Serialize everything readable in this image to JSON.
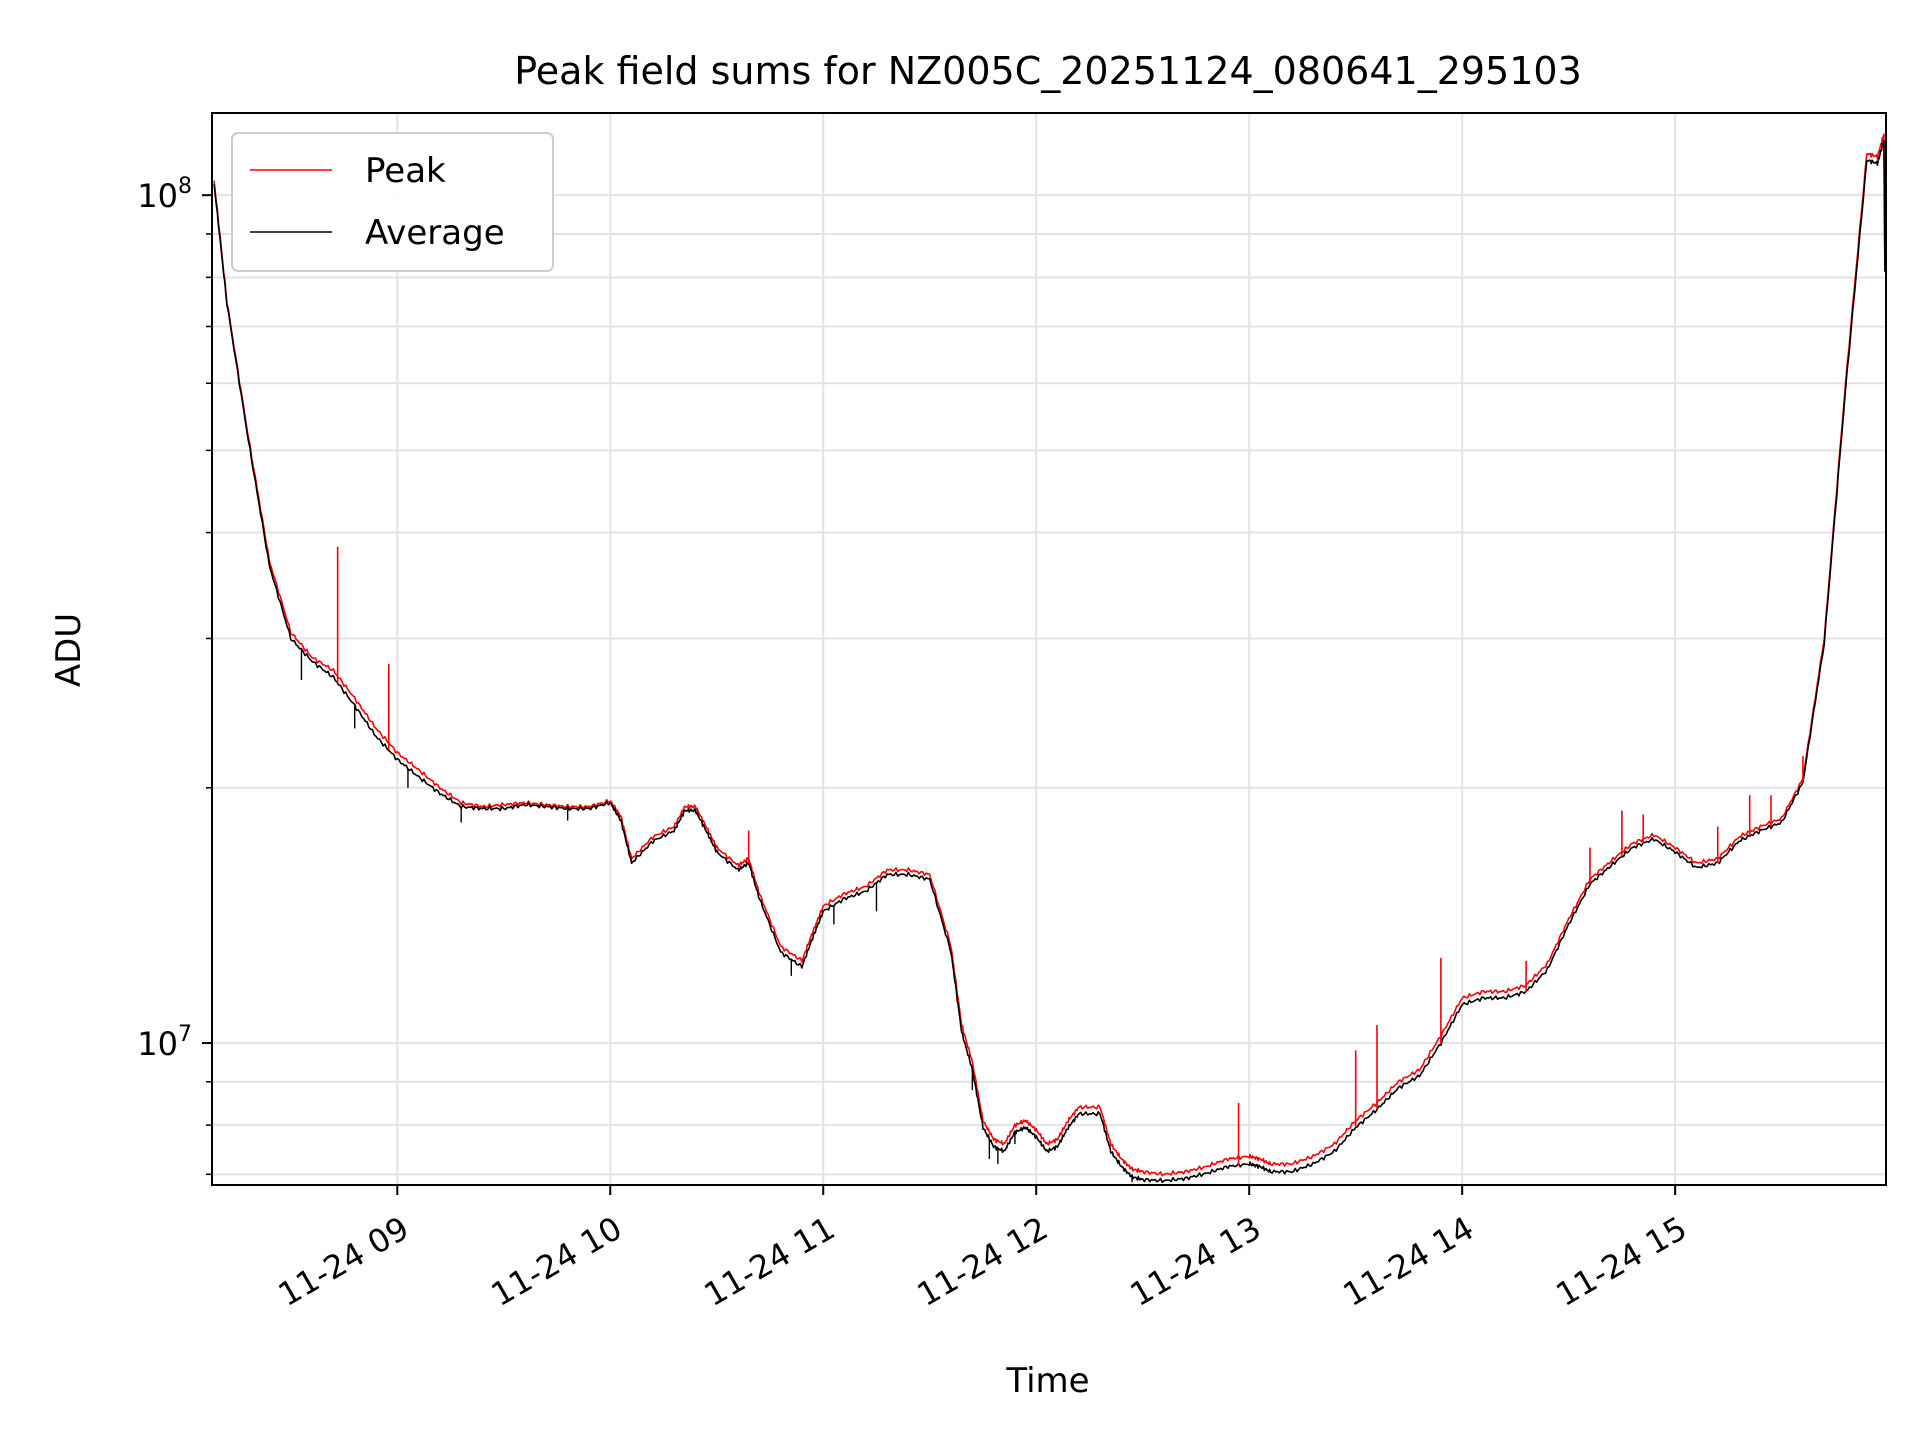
{
  "chart_data": {
    "type": "line",
    "title": "Peak field sums for NZ005C_20251124_080641_295103",
    "xlabel": "Time",
    "ylabel": "ADU",
    "yscale": "log",
    "x_unit": "hours since 11-24 00:00",
    "xlim": [
      8.13,
      15.99
    ],
    "ylim": [
      6800000,
      125000000
    ],
    "grid": true,
    "legend_position": "top-left",
    "x_ticks": [
      {
        "value": 9,
        "label": "11-24 09"
      },
      {
        "value": 10,
        "label": "11-24 10"
      },
      {
        "value": 11,
        "label": "11-24 11"
      },
      {
        "value": 12,
        "label": "11-24 12"
      },
      {
        "value": 13,
        "label": "11-24 13"
      },
      {
        "value": 14,
        "label": "11-24 14"
      },
      {
        "value": 15,
        "label": "11-24 15"
      }
    ],
    "y_ticks": [
      {
        "value": 10000000,
        "base": "10",
        "exp": "7"
      },
      {
        "value": 100000000,
        "base": "10",
        "exp": "8"
      }
    ],
    "series": [
      {
        "name": "Peak",
        "color": "#ff0000",
        "points": [
          [
            8.14,
            104000000
          ],
          [
            8.2,
            75000000
          ],
          [
            8.3,
            52000000
          ],
          [
            8.4,
            37000000
          ],
          [
            8.5,
            30500000
          ],
          [
            8.6,
            28500000
          ],
          [
            8.7,
            27500000
          ],
          [
            8.8,
            25500000
          ],
          [
            8.9,
            23500000
          ],
          [
            9.0,
            22000000
          ],
          [
            9.1,
            21000000
          ],
          [
            9.2,
            20000000
          ],
          [
            9.3,
            19200000
          ],
          [
            9.4,
            19000000
          ],
          [
            9.5,
            19100000
          ],
          [
            9.6,
            19200000
          ],
          [
            9.7,
            19100000
          ],
          [
            9.8,
            19000000
          ],
          [
            9.9,
            19000000
          ],
          [
            10.0,
            19300000
          ],
          [
            10.05,
            18500000
          ],
          [
            10.1,
            16500000
          ],
          [
            10.2,
            17500000
          ],
          [
            10.3,
            18000000
          ],
          [
            10.35,
            19000000
          ],
          [
            10.4,
            19000000
          ],
          [
            10.45,
            18000000
          ],
          [
            10.5,
            17000000
          ],
          [
            10.6,
            16200000
          ],
          [
            10.65,
            16500000
          ],
          [
            10.7,
            15000000
          ],
          [
            10.8,
            13000000
          ],
          [
            10.9,
            12500000
          ],
          [
            10.95,
            13500000
          ],
          [
            11.0,
            14500000
          ],
          [
            11.1,
            15000000
          ],
          [
            11.2,
            15300000
          ],
          [
            11.3,
            16000000
          ],
          [
            11.4,
            16000000
          ],
          [
            11.5,
            15800000
          ],
          [
            11.6,
            13000000
          ],
          [
            11.65,
            10500000
          ],
          [
            11.7,
            9500000
          ],
          [
            11.75,
            8100000
          ],
          [
            11.8,
            7700000
          ],
          [
            11.85,
            7600000
          ],
          [
            11.9,
            8000000
          ],
          [
            11.95,
            8100000
          ],
          [
            12.0,
            7900000
          ],
          [
            12.05,
            7600000
          ],
          [
            12.1,
            7700000
          ],
          [
            12.15,
            8100000
          ],
          [
            12.2,
            8400000
          ],
          [
            12.3,
            8400000
          ],
          [
            12.35,
            7600000
          ],
          [
            12.4,
            7300000
          ],
          [
            12.45,
            7100000
          ],
          [
            12.5,
            7050000
          ],
          [
            12.6,
            7000000
          ],
          [
            12.7,
            7050000
          ],
          [
            12.8,
            7150000
          ],
          [
            12.9,
            7300000
          ],
          [
            13.0,
            7350000
          ],
          [
            13.05,
            7300000
          ],
          [
            13.1,
            7200000
          ],
          [
            13.2,
            7200000
          ],
          [
            13.3,
            7350000
          ],
          [
            13.4,
            7600000
          ],
          [
            13.5,
            8100000
          ],
          [
            13.6,
            8500000
          ],
          [
            13.7,
            9000000
          ],
          [
            13.8,
            9300000
          ],
          [
            13.9,
            10200000
          ],
          [
            14.0,
            11300000
          ],
          [
            14.1,
            11500000
          ],
          [
            14.2,
            11500000
          ],
          [
            14.3,
            11700000
          ],
          [
            14.4,
            12400000
          ],
          [
            14.5,
            14000000
          ],
          [
            14.6,
            15600000
          ],
          [
            14.7,
            16400000
          ],
          [
            14.8,
            17200000
          ],
          [
            14.9,
            17600000
          ],
          [
            15.0,
            17000000
          ],
          [
            15.1,
            16300000
          ],
          [
            15.2,
            16500000
          ],
          [
            15.3,
            17500000
          ],
          [
            15.4,
            18000000
          ],
          [
            15.5,
            18400000
          ],
          [
            15.6,
            20500000
          ],
          [
            15.7,
            30000000
          ],
          [
            15.8,
            60000000
          ],
          [
            15.9,
            112000000
          ],
          [
            15.95,
            111000000
          ],
          [
            15.98,
            118000000
          ]
        ]
      },
      {
        "name": "Average",
        "color": "#000000",
        "points": [
          [
            8.14,
            103000000
          ],
          [
            8.2,
            74500000
          ],
          [
            8.3,
            51500000
          ],
          [
            8.4,
            36500000
          ],
          [
            8.5,
            30000000
          ],
          [
            8.6,
            28200000
          ],
          [
            8.7,
            27000000
          ],
          [
            8.8,
            25000000
          ],
          [
            8.9,
            23000000
          ],
          [
            9.0,
            21600000
          ],
          [
            9.1,
            20600000
          ],
          [
            9.2,
            19700000
          ],
          [
            9.3,
            19000000
          ],
          [
            9.4,
            18900000
          ],
          [
            9.5,
            18900000
          ],
          [
            9.6,
            19100000
          ],
          [
            9.7,
            19000000
          ],
          [
            9.8,
            18900000
          ],
          [
            9.9,
            18900000
          ],
          [
            10.0,
            19200000
          ],
          [
            10.05,
            18300000
          ],
          [
            10.1,
            16300000
          ],
          [
            10.2,
            17300000
          ],
          [
            10.3,
            17800000
          ],
          [
            10.35,
            18800000
          ],
          [
            10.4,
            18800000
          ],
          [
            10.45,
            17800000
          ],
          [
            10.5,
            16800000
          ],
          [
            10.6,
            16000000
          ],
          [
            10.65,
            16300000
          ],
          [
            10.7,
            14800000
          ],
          [
            10.8,
            12800000
          ],
          [
            10.9,
            12300000
          ],
          [
            10.95,
            13300000
          ],
          [
            11.0,
            14300000
          ],
          [
            11.1,
            14800000
          ],
          [
            11.2,
            15100000
          ],
          [
            11.3,
            15800000
          ],
          [
            11.4,
            15800000
          ],
          [
            11.5,
            15600000
          ],
          [
            11.6,
            12800000
          ],
          [
            11.65,
            10300000
          ],
          [
            11.7,
            9300000
          ],
          [
            11.75,
            7950000
          ],
          [
            11.8,
            7550000
          ],
          [
            11.85,
            7450000
          ],
          [
            11.9,
            7850000
          ],
          [
            11.95,
            7950000
          ],
          [
            12.0,
            7750000
          ],
          [
            12.05,
            7450000
          ],
          [
            12.1,
            7550000
          ],
          [
            12.15,
            7950000
          ],
          [
            12.2,
            8250000
          ],
          [
            12.3,
            8250000
          ],
          [
            12.35,
            7450000
          ],
          [
            12.4,
            7150000
          ],
          [
            12.45,
            6950000
          ],
          [
            12.5,
            6900000
          ],
          [
            12.6,
            6880000
          ],
          [
            12.7,
            6920000
          ],
          [
            12.8,
            7020000
          ],
          [
            12.9,
            7150000
          ],
          [
            13.0,
            7200000
          ],
          [
            13.05,
            7150000
          ],
          [
            13.1,
            7050000
          ],
          [
            13.2,
            7050000
          ],
          [
            13.3,
            7200000
          ],
          [
            13.4,
            7450000
          ],
          [
            13.5,
            7950000
          ],
          [
            13.6,
            8350000
          ],
          [
            13.7,
            8850000
          ],
          [
            13.8,
            9150000
          ],
          [
            13.9,
            10000000
          ],
          [
            14.0,
            11100000
          ],
          [
            14.1,
            11300000
          ],
          [
            14.2,
            11300000
          ],
          [
            14.3,
            11500000
          ],
          [
            14.4,
            12200000
          ],
          [
            14.5,
            13800000
          ],
          [
            14.6,
            15400000
          ],
          [
            14.7,
            16200000
          ],
          [
            14.8,
            17000000
          ],
          [
            14.9,
            17400000
          ],
          [
            15.0,
            16800000
          ],
          [
            15.1,
            16100000
          ],
          [
            15.2,
            16300000
          ],
          [
            15.3,
            17300000
          ],
          [
            15.4,
            17800000
          ],
          [
            15.5,
            18200000
          ],
          [
            15.6,
            20300000
          ],
          [
            15.7,
            29600000
          ],
          [
            15.8,
            59000000
          ],
          [
            15.9,
            110000000
          ],
          [
            15.95,
            109000000
          ],
          [
            15.98,
            116000000
          ]
        ]
      }
    ],
    "peak_spikes": [
      [
        8.72,
        38500000
      ],
      [
        8.96,
        28000000
      ],
      [
        10.65,
        17800000
      ],
      [
        12.95,
        8500000
      ],
      [
        13.5,
        9800000
      ],
      [
        13.6,
        10500000
      ],
      [
        13.9,
        12600000
      ],
      [
        14.3,
        12500000
      ],
      [
        14.6,
        17000000
      ],
      [
        14.75,
        18800000
      ],
      [
        14.85,
        18600000
      ],
      [
        15.2,
        18000000
      ],
      [
        15.35,
        19600000
      ],
      [
        15.45,
        19600000
      ],
      [
        15.6,
        21800000
      ]
    ],
    "average_dips": [
      [
        8.55,
        26800000
      ],
      [
        8.8,
        23500000
      ],
      [
        9.05,
        20000000
      ],
      [
        9.3,
        18200000
      ],
      [
        9.8,
        18300000
      ],
      [
        10.85,
        12000000
      ],
      [
        11.05,
        13800000
      ],
      [
        11.25,
        14300000
      ],
      [
        11.7,
        8800000
      ],
      [
        11.78,
        7300000
      ],
      [
        11.82,
        7200000
      ],
      [
        11.9,
        7600000
      ],
      [
        12.45,
        6850000
      ]
    ]
  }
}
